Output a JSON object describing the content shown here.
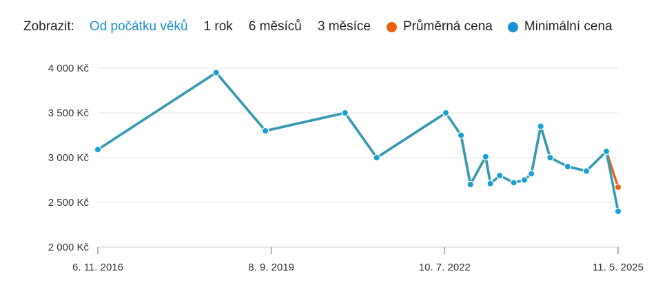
{
  "filter": {
    "label": "Zobrazit:",
    "ranges": [
      {
        "label": "Od počátku věků",
        "active": true
      },
      {
        "label": "1 rok",
        "active": false
      },
      {
        "label": "6 měsíců",
        "active": false
      },
      {
        "label": "3 měsíce",
        "active": false
      }
    ]
  },
  "legend": [
    {
      "label": "Průměrná cena",
      "color": "#e8620c"
    },
    {
      "label": "Minimální cena",
      "color": "#1a8fd1"
    }
  ],
  "chart_data": {
    "type": "line",
    "title": "",
    "xlabel": "",
    "ylabel": "",
    "ylim": [
      2000,
      4000
    ],
    "yticks": [
      {
        "value": 2000,
        "label": "2 000 Kč"
      },
      {
        "value": 2500,
        "label": "2 500 Kč"
      },
      {
        "value": 3000,
        "label": "3 000 Kč"
      },
      {
        "value": 3500,
        "label": "3 500 Kč"
      },
      {
        "value": 4000,
        "label": "4 000 Kč"
      }
    ],
    "xlim": [
      "2016-11-06",
      "2025-05-11"
    ],
    "xticks": [
      {
        "date": "2016-11-06",
        "label": "6. 11. 2016"
      },
      {
        "date": "2019-09-08",
        "label": "8. 9. 2019"
      },
      {
        "date": "2022-07-10",
        "label": "10. 7. 2022"
      },
      {
        "date": "2025-05-11",
        "label": "11. 5. 2025"
      }
    ],
    "grid": true,
    "legend_position": "top-right",
    "series": [
      {
        "name": "Průměrná cena",
        "color": "#e8620c",
        "points": [
          [
            "2016-11-06",
            3090
          ],
          [
            "2018-10-14",
            3950
          ],
          [
            "2019-08-04",
            3300
          ],
          [
            "2020-11-22",
            3500
          ],
          [
            "2021-05-30",
            3000
          ],
          [
            "2022-07-17",
            3500
          ],
          [
            "2022-10-16",
            3250
          ],
          [
            "2022-12-11",
            2700
          ],
          [
            "2023-03-12",
            3010
          ],
          [
            "2023-04-09",
            2710
          ],
          [
            "2023-06-04",
            2800
          ],
          [
            "2023-08-27",
            2720
          ],
          [
            "2023-10-29",
            2750
          ],
          [
            "2023-12-10",
            2820
          ],
          [
            "2024-02-04",
            3350
          ],
          [
            "2024-03-31",
            3000
          ],
          [
            "2024-07-14",
            2900
          ],
          [
            "2024-11-03",
            2850
          ],
          [
            "2025-03-02",
            3070
          ],
          [
            "2025-05-11",
            2670
          ]
        ]
      },
      {
        "name": "Minimální cena",
        "color": "#1a8fd1",
        "points": [
          [
            "2016-11-06",
            3090
          ],
          [
            "2018-10-14",
            3950
          ],
          [
            "2019-08-04",
            3300
          ],
          [
            "2020-11-22",
            3500
          ],
          [
            "2021-05-30",
            3000
          ],
          [
            "2022-07-17",
            3500
          ],
          [
            "2022-10-16",
            3250
          ],
          [
            "2022-12-11",
            2700
          ],
          [
            "2023-03-12",
            3010
          ],
          [
            "2023-04-09",
            2710
          ],
          [
            "2023-06-04",
            2800
          ],
          [
            "2023-08-27",
            2720
          ],
          [
            "2023-10-29",
            2750
          ],
          [
            "2023-12-10",
            2820
          ],
          [
            "2024-02-04",
            3350
          ],
          [
            "2024-03-31",
            3000
          ],
          [
            "2024-07-14",
            2900
          ],
          [
            "2024-11-03",
            2850
          ],
          [
            "2025-03-02",
            3070
          ],
          [
            "2025-05-11",
            2400
          ]
        ]
      }
    ]
  }
}
